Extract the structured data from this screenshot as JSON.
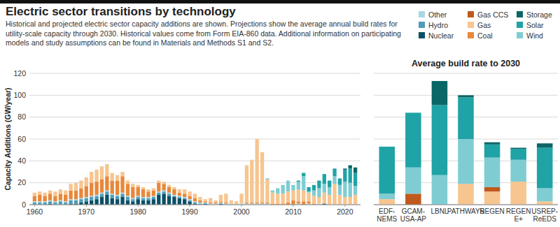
{
  "header": {
    "title": "Electric sector transitions by technology",
    "subtitle": "Historical and projected electric sector capacity additions are shown. Projections show the average annual build rates for utility-scale capacity through 2030. Historical values come from Form EIA-860 data. Additional information on participating models and study assumptions can be found in Materials and Methods S1 and S2."
  },
  "chart_data": [
    {
      "type": "bar",
      "stacked": true,
      "grid": true,
      "legend": "top-right",
      "ylabel": "Capacity Additions (GW/year)",
      "x": [
        1960,
        1961,
        1962,
        1963,
        1964,
        1965,
        1966,
        1967,
        1968,
        1969,
        1970,
        1971,
        1972,
        1973,
        1974,
        1975,
        1976,
        1977,
        1978,
        1979,
        1980,
        1981,
        1982,
        1983,
        1984,
        1985,
        1986,
        1987,
        1988,
        1989,
        1990,
        1991,
        1992,
        1993,
        1994,
        1995,
        1996,
        1997,
        1998,
        1999,
        2000,
        2001,
        2002,
        2003,
        2004,
        2005,
        2006,
        2007,
        2008,
        2009,
        2010,
        2011,
        2012,
        2013,
        2014,
        2015,
        2016,
        2017,
        2018,
        2019,
        2020,
        2021,
        2022
      ],
      "xlim": [
        1959,
        2023
      ],
      "xticks": [
        1960,
        1970,
        1980,
        1990,
        2000,
        2010,
        2020
      ],
      "ylim": [
        0,
        120
      ],
      "yticks": [
        0,
        20,
        40,
        60,
        80,
        100,
        120
      ],
      "series": [
        {
          "name": "Other",
          "color": "#a9d6e5",
          "values": [
            1,
            1,
            1,
            1,
            1,
            1,
            1,
            1,
            1,
            1,
            1,
            1,
            1,
            1,
            1,
            1,
            1,
            1,
            1,
            1,
            1,
            1,
            1,
            1,
            1,
            1,
            1,
            1,
            1,
            1,
            1,
            1,
            1,
            1,
            1,
            1,
            1,
            1,
            1,
            0,
            1,
            1,
            1,
            1,
            1,
            1,
            0,
            0,
            0,
            0,
            0,
            1,
            0,
            1,
            0,
            1,
            0,
            0,
            0,
            0,
            0,
            0,
            0
          ]
        },
        {
          "name": "Hydro",
          "color": "#4f9db8",
          "values": [
            2,
            2,
            2,
            2,
            2,
            3,
            2,
            3,
            3,
            3,
            3,
            3,
            3,
            3,
            3,
            3,
            3,
            3,
            3,
            2,
            2,
            2,
            2,
            2,
            2,
            2,
            2,
            1,
            1,
            1,
            1,
            1,
            1,
            0,
            0,
            0,
            0,
            0,
            0,
            0,
            0,
            0,
            0,
            0,
            0,
            0,
            0,
            0,
            0,
            0,
            0,
            0,
            0,
            0,
            0,
            0,
            0,
            0,
            0,
            0,
            0,
            0,
            0
          ]
        },
        {
          "name": "Nuclear",
          "color": "#0b4f66",
          "values": [
            0,
            0,
            0,
            1,
            0,
            0,
            0,
            1,
            1,
            2,
            3,
            4,
            5,
            7,
            9,
            6,
            5,
            7,
            4,
            3,
            5,
            4,
            4,
            5,
            9,
            10,
            8,
            7,
            6,
            5,
            3,
            1,
            0,
            1,
            0,
            0,
            1,
            0,
            0,
            0,
            0,
            0,
            0,
            0,
            0,
            0,
            0,
            0,
            0,
            0,
            0,
            0,
            0,
            0,
            0,
            0,
            1,
            0,
            0,
            0,
            0,
            0,
            0
          ]
        },
        {
          "name": "Gas CCS",
          "color": "#c0591e",
          "values": [
            0,
            0,
            0,
            0,
            0,
            0,
            0,
            0,
            0,
            0,
            0,
            0,
            0,
            0,
            0,
            0,
            0,
            0,
            0,
            0,
            0,
            0,
            0,
            0,
            0,
            0,
            0,
            0,
            0,
            0,
            0,
            0,
            0,
            0,
            0,
            0,
            0,
            0,
            0,
            0,
            0,
            0,
            0,
            0,
            0,
            0,
            0,
            0,
            0,
            0,
            0,
            0,
            0,
            0,
            0,
            0,
            0,
            0,
            0,
            0,
            0,
            0,
            0
          ]
        },
        {
          "name": "Gas",
          "color": "#f7c590",
          "values": [
            3,
            3,
            3,
            3,
            4,
            4,
            4,
            6,
            7,
            7,
            8,
            10,
            11,
            12,
            11,
            7,
            5,
            4,
            3,
            3,
            2,
            2,
            2,
            2,
            2,
            2,
            2,
            2,
            3,
            4,
            4,
            4,
            3,
            2,
            4,
            2,
            6,
            8,
            3,
            3,
            9,
            34,
            39,
            58,
            46,
            21,
            10,
            9,
            9,
            10,
            9,
            11,
            10,
            8,
            7,
            6,
            10,
            9,
            19,
            9,
            7,
            7,
            9
          ]
        },
        {
          "name": "Coal",
          "color": "#e8883a",
          "values": [
            5,
            6,
            5,
            6,
            5,
            6,
            6,
            8,
            8,
            9,
            10,
            12,
            12,
            12,
            13,
            12,
            13,
            15,
            11,
            10,
            8,
            7,
            5,
            5,
            8,
            6,
            5,
            5,
            3,
            3,
            3,
            3,
            2,
            1,
            1,
            1,
            1,
            1,
            0,
            0,
            0,
            1,
            1,
            1,
            1,
            1,
            1,
            1,
            1,
            2,
            4,
            2,
            3,
            2,
            1,
            0,
            0,
            0,
            0,
            0,
            0,
            0,
            0
          ]
        },
        {
          "name": "Storage",
          "color": "#0b6666",
          "values": [
            0,
            0,
            0,
            0,
            0,
            0,
            0,
            0,
            0,
            0,
            0,
            0,
            0,
            0,
            0,
            0,
            0,
            0,
            0,
            0,
            0,
            0,
            0,
            0,
            0,
            0,
            0,
            0,
            0,
            0,
            0,
            0,
            0,
            0,
            0,
            0,
            0,
            0,
            0,
            0,
            0,
            0,
            0,
            0,
            0,
            0,
            0,
            0,
            0,
            0,
            0,
            0,
            0,
            0,
            0,
            0,
            0,
            0,
            0,
            0,
            1,
            3,
            5
          ]
        },
        {
          "name": "Solar",
          "color": "#1fa3a6",
          "values": [
            0,
            0,
            0,
            0,
            0,
            0,
            0,
            0,
            0,
            0,
            0,
            0,
            0,
            0,
            0,
            0,
            0,
            0,
            0,
            0,
            0,
            0,
            0,
            0,
            0,
            0,
            0,
            0,
            0,
            0,
            0,
            0,
            0,
            0,
            0,
            0,
            0,
            0,
            0,
            0,
            0,
            0,
            0,
            0,
            0,
            0,
            0,
            0,
            0,
            0,
            0,
            1,
            3,
            4,
            5,
            7,
            9,
            6,
            7,
            6,
            11,
            13,
            12
          ]
        },
        {
          "name": "Wind",
          "color": "#7fcdd3",
          "values": [
            0,
            0,
            0,
            0,
            0,
            0,
            0,
            0,
            0,
            0,
            0,
            0,
            0,
            0,
            0,
            0,
            0,
            0,
            0,
            0,
            0,
            0,
            0,
            0,
            0,
            0,
            0,
            0,
            0,
            0,
            0,
            0,
            0,
            0,
            0,
            0,
            0,
            0,
            0,
            0,
            0,
            0,
            0,
            0,
            0,
            1,
            2,
            5,
            8,
            10,
            5,
            7,
            13,
            1,
            5,
            8,
            8,
            7,
            7,
            9,
            14,
            13,
            8
          ]
        }
      ]
    },
    {
      "type": "bar",
      "stacked": true,
      "grid": true,
      "tick_labels": "x",
      "title": "Average build rate to 2030",
      "categories": [
        "EDF-NEMS",
        "GCAM-USA-AP",
        "LBNL",
        "PATHWAYS",
        "REGEN",
        "REGEN E+",
        "USREP-ReEDS"
      ],
      "ylim": [
        0,
        120
      ],
      "yticks": [
        0,
        20,
        40,
        60,
        80,
        100,
        120
      ],
      "series": [
        {
          "name": "Other",
          "color": "#a9d6e5",
          "values": [
            0,
            0,
            0,
            0,
            0,
            0,
            0
          ]
        },
        {
          "name": "Hydro",
          "color": "#4f9db8",
          "values": [
            0,
            0,
            0,
            0,
            0,
            0,
            0
          ]
        },
        {
          "name": "Nuclear",
          "color": "#0b4f66",
          "values": [
            0,
            0,
            0,
            0,
            0,
            0,
            0
          ]
        },
        {
          "name": "Gas CCS",
          "color": "#c0591e",
          "values": [
            0,
            10,
            0,
            0,
            4,
            0,
            0
          ]
        },
        {
          "name": "Gas",
          "color": "#f7c590",
          "values": [
            5,
            0,
            0,
            19,
            12,
            21,
            3
          ]
        },
        {
          "name": "Coal",
          "color": "#e8883a",
          "values": [
            0,
            0,
            0,
            0,
            0,
            0,
            0
          ]
        },
        {
          "name": "Storage",
          "color": "#0b6666",
          "values": [
            0,
            0,
            22,
            2,
            2,
            1,
            4
          ]
        },
        {
          "name": "Solar",
          "color": "#1fa3a6",
          "values": [
            43,
            50,
            64,
            38,
            12,
            10,
            37
          ]
        },
        {
          "name": "Wind",
          "color": "#7fcdd3",
          "values": [
            5,
            24,
            27,
            41,
            27,
            20,
            12
          ]
        }
      ]
    }
  ]
}
